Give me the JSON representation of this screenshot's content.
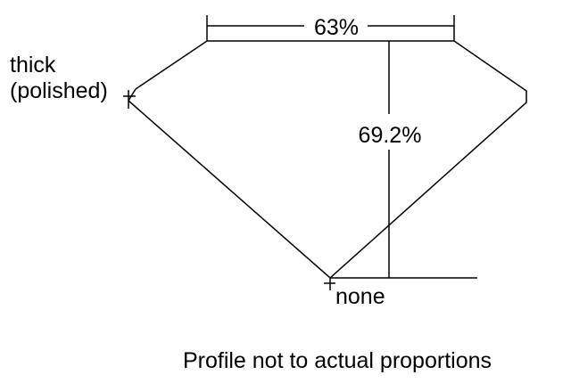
{
  "diagram": {
    "table_label": "63%",
    "depth_label": "69.2%",
    "girdle_label_line1": "thick",
    "girdle_label_line2": "(polished)",
    "culet_label": "none",
    "caption": "Profile not to actual proportions"
  },
  "colors": {
    "line": "#000000",
    "background": "#ffffff"
  }
}
